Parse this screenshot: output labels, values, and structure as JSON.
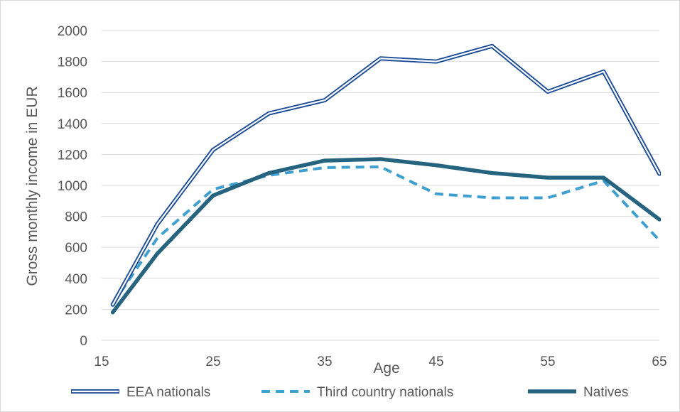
{
  "chart_data": {
    "type": "line",
    "title": "",
    "xlabel": "Age",
    "ylabel": "Gross monthly income in EUR",
    "x": [
      16,
      20,
      25,
      30,
      35,
      40,
      45,
      50,
      55,
      60,
      65
    ],
    "xticks": [
      15,
      25,
      35,
      45,
      55,
      65
    ],
    "xlim": [
      15,
      65
    ],
    "yticks": [
      0,
      200,
      400,
      600,
      800,
      1000,
      1200,
      1400,
      1600,
      1800,
      2000
    ],
    "ylim": [
      0,
      2000
    ],
    "grid": "horizontal",
    "legend_position": "bottom",
    "series": [
      {
        "name": "EEA nationals",
        "style": "double-line",
        "color": "#1F4E99",
        "values": [
          230,
          750,
          1230,
          1465,
          1550,
          1820,
          1800,
          1900,
          1605,
          1735,
          1075
        ]
      },
      {
        "name": "Third country nationals",
        "style": "dashed",
        "color": "#3FA0CF",
        "values": [
          235,
          660,
          975,
          1065,
          1115,
          1120,
          945,
          920,
          920,
          1030,
          645
        ]
      },
      {
        "name": "Natives",
        "style": "thick",
        "color": "#25637F",
        "values": [
          180,
          560,
          935,
          1080,
          1160,
          1170,
          1130,
          1080,
          1050,
          1050,
          780
        ]
      }
    ]
  }
}
